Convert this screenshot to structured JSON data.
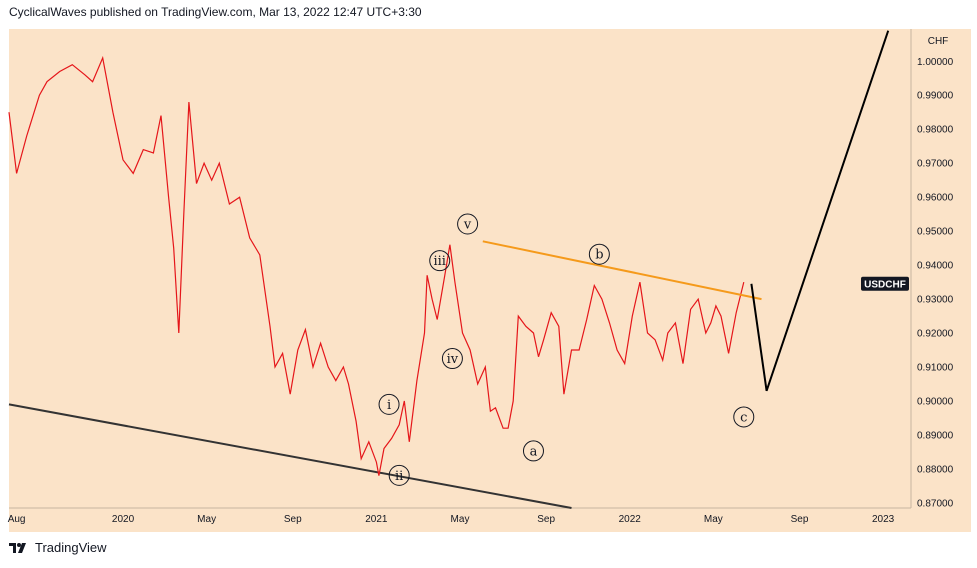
{
  "header": {
    "text": "CyclicalWaves published on TradingView.com, Mar 13, 2022 12:47 UTC+3:30"
  },
  "footer": {
    "brand": "TradingView",
    "logo_icon": "tradingview-logo-icon"
  },
  "colors": {
    "background": "#fbe3c8",
    "price": "#e5161a",
    "price_dark": "#111111",
    "trendline": "#f59a1b",
    "channel": "#333333",
    "projection": "#000000"
  },
  "chart_data": {
    "type": "line",
    "title": "",
    "symbol": "USDCHF",
    "currency": "CHF",
    "x_ticks": [
      {
        "label": "Aug",
        "date": 2019.58
      },
      {
        "label": "2020",
        "date": 2020.0
      },
      {
        "label": "May",
        "date": 2020.33
      },
      {
        "label": "Sep",
        "date": 2020.67
      },
      {
        "label": "2021",
        "date": 2021.0
      },
      {
        "label": "May",
        "date": 2021.33
      },
      {
        "label": "Sep",
        "date": 2021.67
      },
      {
        "label": "2022",
        "date": 2022.0
      },
      {
        "label": "May",
        "date": 2022.33
      },
      {
        "label": "Sep",
        "date": 2022.67
      },
      {
        "label": "2023",
        "date": 2023.0
      }
    ],
    "y_ticks": [
      "0.87000",
      "0.88000",
      "0.89000",
      "0.90000",
      "0.91000",
      "0.92000",
      "0.93000",
      "0.94000",
      "0.95000",
      "0.96000",
      "0.97000",
      "0.98000",
      "0.99000",
      "1.00000"
    ],
    "xlim": [
      2019.55,
      2023.11
    ],
    "ylim": [
      0.8685,
      1.0095
    ],
    "price_series": [
      [
        2019.55,
        0.985
      ],
      [
        2019.58,
        0.967
      ],
      [
        2019.62,
        0.978
      ],
      [
        2019.67,
        0.99
      ],
      [
        2019.7,
        0.994
      ],
      [
        2019.75,
        0.997
      ],
      [
        2019.8,
        0.999
      ],
      [
        2019.85,
        0.996
      ],
      [
        2019.88,
        0.994
      ],
      [
        2019.92,
        1.001
      ],
      [
        2019.96,
        0.985
      ],
      [
        2020.0,
        0.971
      ],
      [
        2020.04,
        0.967
      ],
      [
        2020.08,
        0.974
      ],
      [
        2020.12,
        0.973
      ],
      [
        2020.15,
        0.984
      ],
      [
        2020.18,
        0.96
      ],
      [
        2020.2,
        0.945
      ],
      [
        2020.22,
        0.92
      ],
      [
        2020.24,
        0.955
      ],
      [
        2020.26,
        0.988
      ],
      [
        2020.29,
        0.964
      ],
      [
        2020.32,
        0.97
      ],
      [
        2020.35,
        0.965
      ],
      [
        2020.38,
        0.97
      ],
      [
        2020.42,
        0.958
      ],
      [
        2020.46,
        0.96
      ],
      [
        2020.5,
        0.948
      ],
      [
        2020.54,
        0.943
      ],
      [
        2020.58,
        0.922
      ],
      [
        2020.6,
        0.91
      ],
      [
        2020.63,
        0.914
      ],
      [
        2020.66,
        0.902
      ],
      [
        2020.69,
        0.915
      ],
      [
        2020.72,
        0.921
      ],
      [
        2020.75,
        0.91
      ],
      [
        2020.78,
        0.917
      ],
      [
        2020.81,
        0.91
      ],
      [
        2020.84,
        0.906
      ],
      [
        2020.87,
        0.91
      ],
      [
        2020.89,
        0.905
      ],
      [
        2020.92,
        0.894
      ],
      [
        2020.94,
        0.883
      ],
      [
        2020.97,
        0.888
      ],
      [
        2021.0,
        0.882
      ],
      [
        2021.01,
        0.878
      ],
      [
        2021.03,
        0.886
      ],
      [
        2021.06,
        0.889
      ],
      [
        2021.09,
        0.893
      ],
      [
        2021.11,
        0.9
      ],
      [
        2021.13,
        0.888
      ],
      [
        2021.16,
        0.906
      ],
      [
        2021.19,
        0.92
      ],
      [
        2021.2,
        0.937
      ],
      [
        2021.22,
        0.93
      ],
      [
        2021.24,
        0.924
      ],
      [
        2021.27,
        0.937
      ],
      [
        2021.29,
        0.946
      ],
      [
        2021.31,
        0.935
      ],
      [
        2021.34,
        0.92
      ],
      [
        2021.37,
        0.915
      ],
      [
        2021.4,
        0.905
      ],
      [
        2021.43,
        0.91
      ],
      [
        2021.45,
        0.897
      ],
      [
        2021.47,
        0.898
      ],
      [
        2021.5,
        0.892
      ],
      [
        2021.52,
        0.892
      ],
      [
        2021.54,
        0.9
      ],
      [
        2021.56,
        0.925
      ],
      [
        2021.59,
        0.922
      ],
      [
        2021.62,
        0.92
      ],
      [
        2021.64,
        0.913
      ],
      [
        2021.66,
        0.918
      ],
      [
        2021.69,
        0.926
      ],
      [
        2021.72,
        0.922
      ],
      [
        2021.74,
        0.902
      ],
      [
        2021.77,
        0.915
      ],
      [
        2021.8,
        0.915
      ],
      [
        2021.83,
        0.924
      ],
      [
        2021.86,
        0.934
      ],
      [
        2021.89,
        0.93
      ],
      [
        2021.92,
        0.923
      ],
      [
        2021.95,
        0.915
      ],
      [
        2021.98,
        0.911
      ],
      [
        2022.01,
        0.925
      ],
      [
        2022.04,
        0.935
      ],
      [
        2022.07,
        0.92
      ],
      [
        2022.1,
        0.918
      ],
      [
        2022.13,
        0.912
      ],
      [
        2022.15,
        0.92
      ],
      [
        2022.18,
        0.923
      ],
      [
        2022.21,
        0.911
      ],
      [
        2022.24,
        0.927
      ],
      [
        2022.27,
        0.93
      ],
      [
        2022.3,
        0.92
      ],
      [
        2022.32,
        0.923
      ],
      [
        2022.34,
        0.928
      ],
      [
        2022.36,
        0.925
      ],
      [
        2022.39,
        0.914
      ],
      [
        2022.42,
        0.926
      ],
      [
        2022.45,
        0.935
      ]
    ],
    "wave_labels": [
      {
        "label": "i",
        "date": 2021.05,
        "price": 0.899
      },
      {
        "label": "ii",
        "date": 2021.09,
        "price": 0.8781
      },
      {
        "label": "iii",
        "date": 2021.25,
        "price": 0.9413
      },
      {
        "label": "iv",
        "date": 2021.3,
        "price": 0.9125
      },
      {
        "label": "v",
        "date": 2021.36,
        "price": 0.9521
      },
      {
        "label": "a",
        "date": 2021.62,
        "price": 0.8853
      },
      {
        "label": "b",
        "date": 2021.88,
        "price": 0.9432
      },
      {
        "label": "c",
        "date": 2022.45,
        "price": 0.8953
      }
    ],
    "trendline": [
      [
        2021.42,
        0.947
      ],
      [
        2022.52,
        0.93
      ]
    ],
    "channel_line": [
      [
        2019.55,
        0.899
      ],
      [
        2021.77,
        0.8685
      ]
    ],
    "projection": [
      [
        2022.48,
        0.9345
      ],
      [
        2022.54,
        0.903
      ],
      [
        2023.02,
        1.009
      ]
    ],
    "last_price_label": {
      "text": "USDCHF",
      "price": 0.9345
    }
  }
}
